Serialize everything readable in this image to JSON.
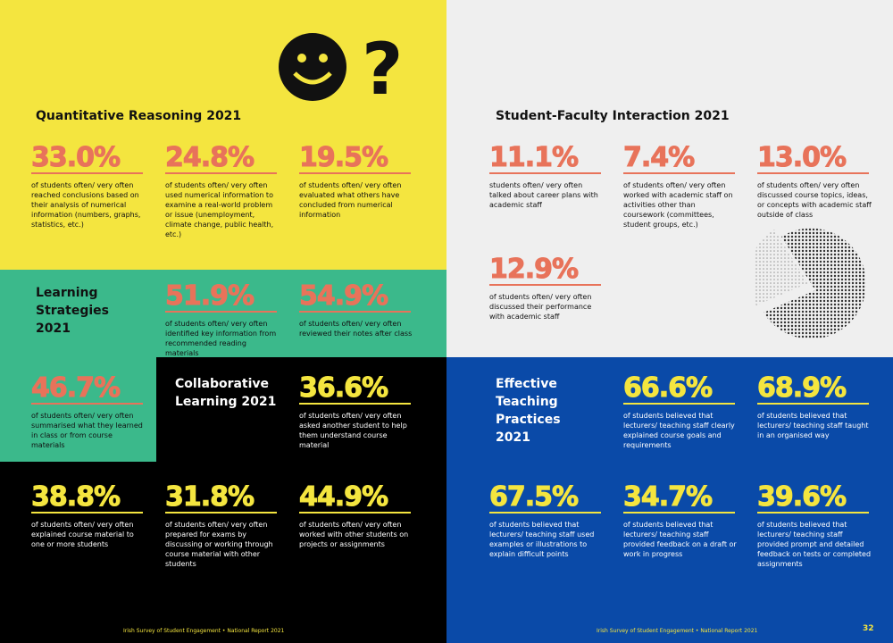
{
  "sections": [
    {
      "title": "Quantitative Reasoning 2021",
      "stats": [
        {
          "value": "33.0%",
          "description": "of students often/ very often reached conclusions based on their analysis of numerical information (numbers, graphs, statistics, etc.)"
        },
        {
          "value": "24.8%",
          "description": "of students often/ very often used numerical information to examine a real-world problem or issue (unemployment, climate change, public health, etc.)"
        },
        {
          "value": "19.5%",
          "description": "of students often/ very often evaluated what others have concluded from numerical information"
        }
      ]
    },
    {
      "title": "Learning Strategies 2021",
      "stats": [
        {
          "value": "51.9%",
          "description": "of students often/ very often identified key information from recommended reading materials"
        },
        {
          "value": "54.9%",
          "description": "of students often/ very often reviewed their notes after class"
        },
        {
          "value": "46.7%",
          "description": "of students often/ very often summarised what they learned in class or from course materials"
        }
      ]
    },
    {
      "title": "Collaborative Learning 2021",
      "stats": [
        {
          "value": "36.6%",
          "description": "of students often/ very often asked another student to help them understand course material"
        },
        {
          "value": "38.8%",
          "description": "of students often/ very often explained course material to one or more students"
        },
        {
          "value": "31.8%",
          "description": "of students often/ very often prepared for exams by discussing or working through course material with other students"
        },
        {
          "value": "44.9%",
          "description": "of students often/ very often worked with other students on projects or assignments"
        }
      ]
    },
    {
      "title": "Student-Faculty Interaction 2021",
      "stats": [
        {
          "value": "11.1%",
          "description": "students often/ very often talked about career plans with academic staff"
        },
        {
          "value": "7.4%",
          "description": "of students often/ very often worked with academic staff on activities other than coursework (committees, student groups, etc.)"
        },
        {
          "value": "13.0%",
          "description": "of students often/ very often discussed course topics, ideas, or concepts with academic staff outside of class"
        },
        {
          "value": "12.9%",
          "description": "of students often/ very often discussed their performance with academic staff"
        }
      ]
    },
    {
      "title": "Effective Teaching Practices 2021",
      "stats": [
        {
          "value": "66.6%",
          "description": "of students believed that lecturers/ teaching staff clearly explained course goals and requirements"
        },
        {
          "value": "68.9%",
          "description": "of students believed that lecturers/ teaching staff taught in an organised way"
        },
        {
          "value": "67.5%",
          "description": "of students believed that lecturers/ teaching staff used examples or illustrations to explain difficult points"
        },
        {
          "value": "34.7%",
          "description": "of students believed that lecturers/ teaching staff provided feedback on a draft or work in progress"
        },
        {
          "value": "39.6%",
          "description": "of students believed that lecturers/ teaching staff provided prompt and detailed feedback on tests or completed assignments"
        }
      ]
    }
  ],
  "footer": {
    "left": "Irish Survey of Student Engagement • National Report 2021",
    "right": "Irish Survey of Student Engagement • National Report 2021",
    "page": "32"
  }
}
